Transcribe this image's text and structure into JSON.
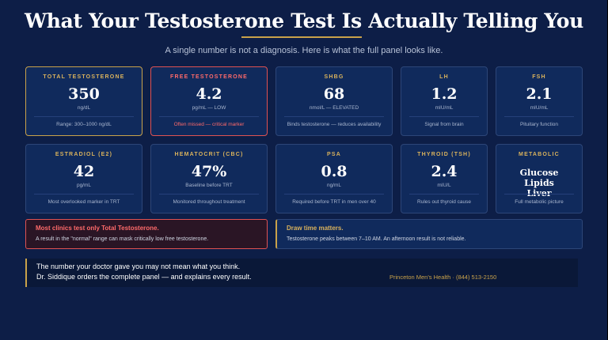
{
  "title": "What Your Testosterone Test Is Actually Telling You",
  "subtitle": "A single number is not a diagnosis. Here is what the full panel looks like.",
  "colors": {
    "background": "#0d1e47",
    "card": "#102a5c",
    "gold": "#c9a24a",
    "red": "#e05252"
  },
  "cards": [
    {
      "label": "TOTAL TESTOSTERONE",
      "value": "350",
      "unit": "ng/dL",
      "note": "Range: 300–1000 ng/dL"
    },
    {
      "label": "FREE TESTOSTERONE",
      "value": "4.2",
      "unit": "pg/mL — LOW",
      "note": "Often missed — critical marker"
    },
    {
      "label": "SHBG",
      "value": "68",
      "unit": "nmol/L — ELEVATED",
      "note": "Binds testosterone — reduces availability"
    },
    {
      "label": "LH",
      "value": "1.2",
      "unit": "mIU/mL",
      "note": "Signal from brain"
    },
    {
      "label": "FSH",
      "value": "2.1",
      "unit": "mIU/mL",
      "note": "Pituitary function"
    },
    {
      "label": "ESTRADIOL (E2)",
      "value": "42",
      "unit": "pg/mL",
      "note": "Most overlooked marker in TRT"
    },
    {
      "label": "HEMATOCRIT (CBC)",
      "value": "47%",
      "unit": "Baseline before TRT",
      "note": "Monitored throughout treatment"
    },
    {
      "label": "PSA",
      "value": "0.8",
      "unit": "ng/mL",
      "note": "Required before TRT in men over 40"
    },
    {
      "label": "THYROID (TSH)",
      "value": "2.4",
      "unit": "mIU/L",
      "note": "Rules out thyroid cause"
    },
    {
      "label": "METABOLIC",
      "value_lines": [
        "Glucose",
        "Lipids",
        "Liver"
      ],
      "unit": "",
      "note": "Full metabolic picture"
    }
  ],
  "alerts": {
    "clinics": {
      "heading": "Most clinics test only Total Testosterone.",
      "body": "A result in the \"normal\" range can mask critically low free testosterone."
    },
    "draw_time": {
      "heading": "Draw time matters.",
      "body": "Testosterone peaks between 7–10 AM. An afternoon result is not reliable."
    }
  },
  "footer": {
    "line1": "The number your doctor gave you may not mean what you think.",
    "line2": "Dr. Siddique orders the complete panel — and explains every result.",
    "contact": "Princeton Men's Health · (844) 513-2150"
  }
}
